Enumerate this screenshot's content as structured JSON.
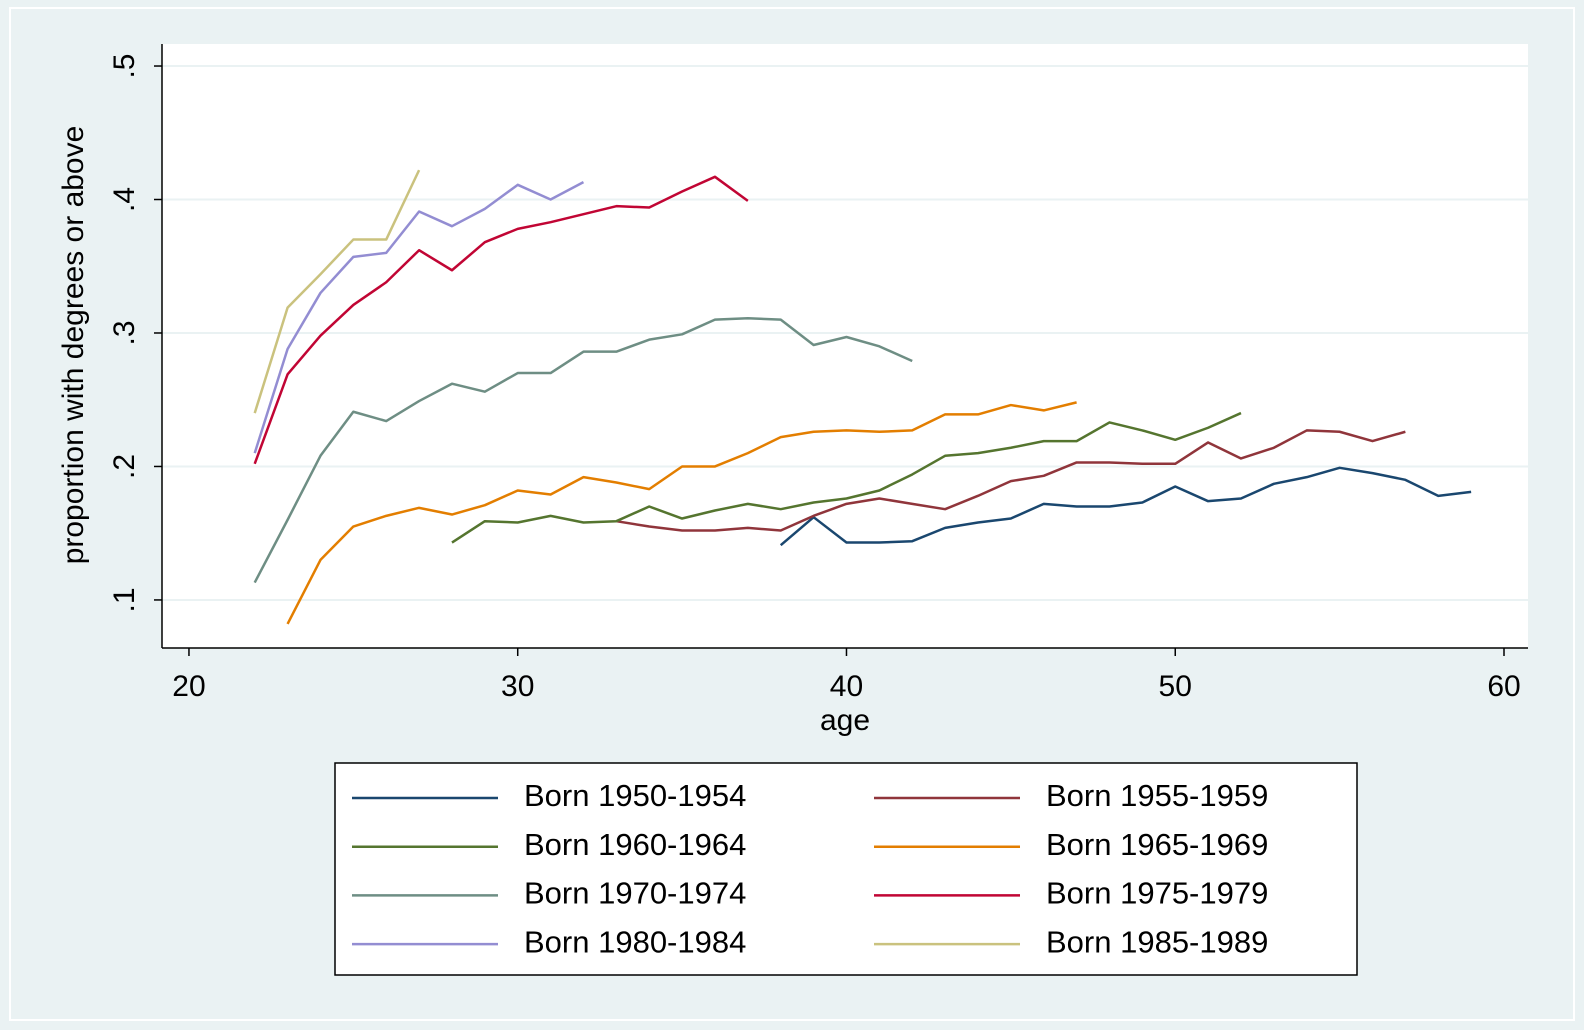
{
  "chart_data": {
    "type": "line",
    "xlabel": "age",
    "ylabel": "proportion with degrees or above",
    "xlim": [
      19.18,
      60.73
    ],
    "ylim": [
      0.064,
      0.5165
    ],
    "xticks": [
      20,
      30,
      40,
      50,
      60
    ],
    "yticks": [
      {
        "value": 0.1,
        "label": ".1"
      },
      {
        "value": 0.2,
        "label": ".2"
      },
      {
        "value": 0.3,
        "label": ".3"
      },
      {
        "value": 0.4,
        "label": ".4"
      },
      {
        "value": 0.5,
        "label": ".5"
      }
    ],
    "grid": true,
    "legend": "bottom",
    "series": [
      {
        "name": "Born 1950-1954",
        "color": "#1a476f",
        "x": [
          38,
          39,
          40,
          41,
          42,
          43,
          44,
          45,
          46,
          47,
          48,
          49,
          50,
          51,
          52,
          53,
          54,
          55,
          56,
          57,
          58,
          59
        ],
        "values": [
          0.141,
          0.162,
          0.143,
          0.143,
          0.144,
          0.154,
          0.158,
          0.161,
          0.172,
          0.17,
          0.17,
          0.173,
          0.185,
          0.174,
          0.176,
          0.187,
          0.192,
          0.199,
          0.195,
          0.19,
          0.178,
          0.181
        ]
      },
      {
        "name": "Born 1955-1959",
        "color": "#90353b",
        "x": [
          33,
          34,
          35,
          36,
          37,
          38,
          39,
          40,
          41,
          42,
          43,
          44,
          45,
          46,
          47,
          48,
          49,
          50,
          51,
          52,
          53,
          54,
          55,
          56,
          57
        ],
        "values": [
          0.159,
          0.155,
          0.152,
          0.152,
          0.154,
          0.152,
          0.163,
          0.172,
          0.176,
          0.172,
          0.168,
          0.178,
          0.189,
          0.193,
          0.203,
          0.203,
          0.202,
          0.202,
          0.218,
          0.206,
          0.214,
          0.227,
          0.226,
          0.219,
          0.226
        ]
      },
      {
        "name": "Born 1960-1964",
        "color": "#55752f",
        "x": [
          28,
          29,
          30,
          31,
          32,
          33,
          34,
          35,
          36,
          37,
          38,
          39,
          40,
          41,
          42,
          43,
          44,
          45,
          46,
          47,
          48,
          49,
          50,
          51,
          52
        ],
        "values": [
          0.143,
          0.159,
          0.158,
          0.163,
          0.158,
          0.159,
          0.17,
          0.161,
          0.167,
          0.172,
          0.168,
          0.173,
          0.176,
          0.182,
          0.194,
          0.208,
          0.21,
          0.214,
          0.219,
          0.219,
          0.233,
          0.227,
          0.22,
          0.229,
          0.24
        ]
      },
      {
        "name": "Born 1965-1969",
        "color": "#e37e00",
        "x": [
          23,
          24,
          25,
          26,
          27,
          28,
          29,
          30,
          31,
          32,
          33,
          34,
          35,
          36,
          37,
          38,
          39,
          40,
          41,
          42,
          43,
          44,
          45,
          46,
          47
        ],
        "values": [
          0.082,
          0.13,
          0.155,
          0.163,
          0.169,
          0.164,
          0.171,
          0.182,
          0.179,
          0.192,
          0.188,
          0.183,
          0.2,
          0.2,
          0.21,
          0.222,
          0.226,
          0.227,
          0.226,
          0.227,
          0.239,
          0.239,
          0.246,
          0.242,
          0.248
        ]
      },
      {
        "name": "Born 1970-1974",
        "color": "#6e8e84",
        "x": [
          22,
          23,
          24,
          25,
          26,
          27,
          28,
          29,
          30,
          31,
          32,
          33,
          34,
          35,
          36,
          37,
          38,
          39,
          40,
          41,
          42
        ],
        "values": [
          0.113,
          0.16,
          0.208,
          0.241,
          0.234,
          0.249,
          0.262,
          0.256,
          0.27,
          0.27,
          0.286,
          0.286,
          0.295,
          0.299,
          0.31,
          0.311,
          0.31,
          0.291,
          0.297,
          0.29,
          0.279
        ]
      },
      {
        "name": "Born 1975-1979",
        "color": "#c10534",
        "x": [
          22,
          23,
          24,
          25,
          26,
          27,
          28,
          29,
          30,
          31,
          32,
          33,
          34,
          35,
          36,
          37
        ],
        "values": [
          0.202,
          0.269,
          0.298,
          0.321,
          0.338,
          0.362,
          0.347,
          0.368,
          0.378,
          0.383,
          0.389,
          0.395,
          0.394,
          0.406,
          0.417,
          0.399
        ]
      },
      {
        "name": "Born 1980-1984",
        "color": "#938dd2",
        "x": [
          22,
          23,
          24,
          25,
          26,
          27,
          28,
          29,
          30,
          31,
          32
        ],
        "values": [
          0.21,
          0.288,
          0.33,
          0.357,
          0.36,
          0.391,
          0.38,
          0.393,
          0.411,
          0.4,
          0.413
        ]
      },
      {
        "name": "Born 1985-1989",
        "color": "#cac27e",
        "x": [
          22,
          23,
          24,
          25,
          26,
          27
        ],
        "values": [
          0.24,
          0.319,
          0.344,
          0.37,
          0.37,
          0.422
        ]
      }
    ]
  }
}
